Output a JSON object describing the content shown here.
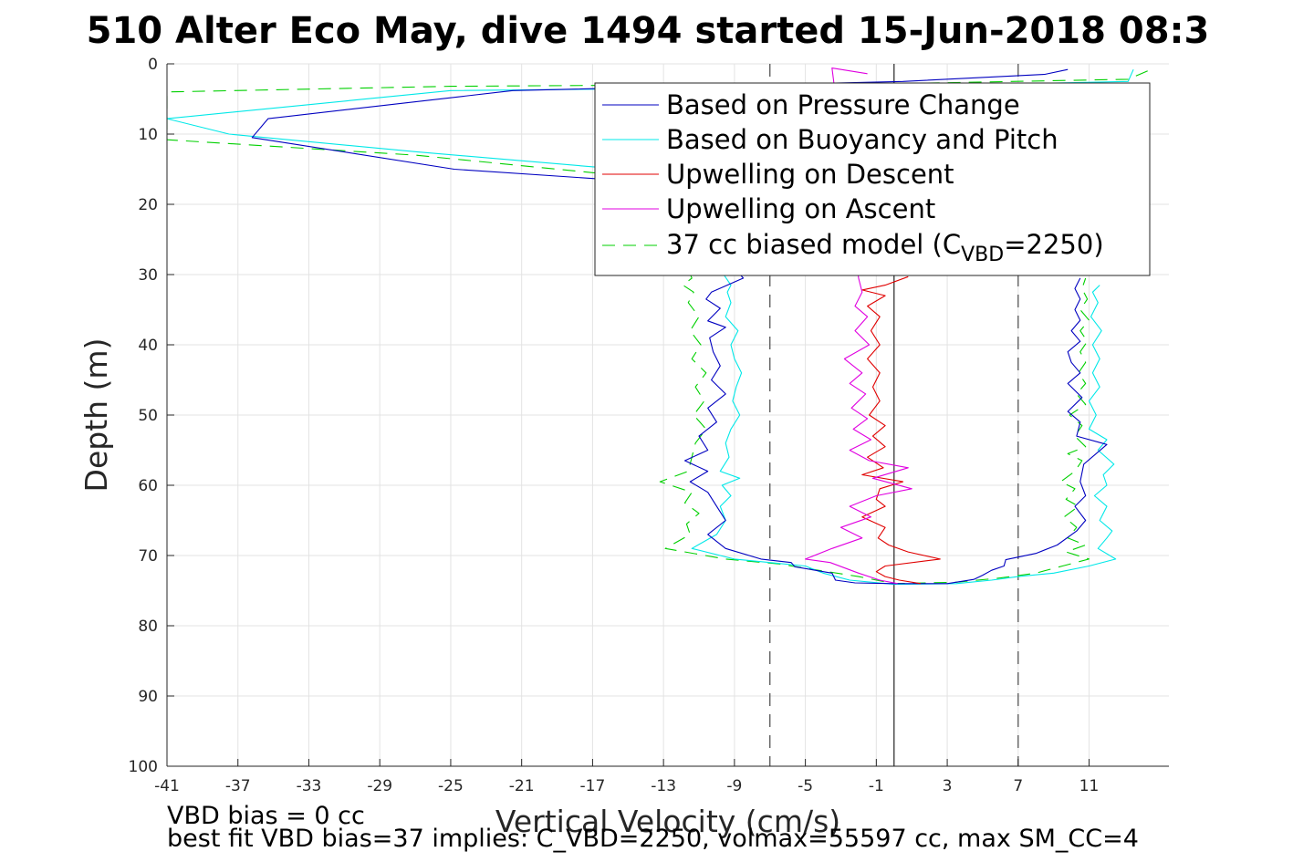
{
  "chart_data": {
    "type": "line",
    "title": "510 Alter Eco May, dive 1494 started 15-Jun-2018 08:3",
    "xlabel": "Vertical Velocity (cm/s)",
    "ylabel": "Depth (m)",
    "xlim": [
      -41,
      15.5
    ],
    "ylim": [
      0,
      100
    ],
    "y_reversed": true,
    "xticks": [
      "-41",
      "-37",
      "-33",
      "-29",
      "-25",
      "-21",
      "-17",
      "-13",
      "-9",
      "-5",
      "-1",
      "3",
      "7",
      "11"
    ],
    "yticks": [
      "0",
      "10",
      "20",
      "30",
      "40",
      "50",
      "60",
      "70",
      "80",
      "90",
      "100"
    ],
    "grid": true,
    "legend_position": "top-right",
    "reference_lines": [
      {
        "x": -7,
        "style": "dashed",
        "color": "#555555"
      },
      {
        "x": 0,
        "style": "solid",
        "color": "#333333"
      },
      {
        "x": 7,
        "style": "dashed",
        "color": "#555555"
      }
    ],
    "series": [
      {
        "name": "Based on Pressure Change",
        "color": "#0000c0",
        "dash": false,
        "points": [
          [
            9.8,
            0.8
          ],
          [
            8.5,
            1.5
          ],
          [
            0.5,
            2.5
          ],
          [
            -21.5,
            3.8
          ],
          [
            -35.3,
            7.8
          ],
          [
            -36.2,
            10.5
          ],
          [
            -24.8,
            15
          ],
          [
            -16.5,
            16.4
          ],
          [
            -13.5,
            17
          ],
          [
            -8.5,
            30.5
          ],
          [
            -10.3,
            32.5
          ],
          [
            -10.6,
            33.5
          ],
          [
            -9.8,
            34.8
          ],
          [
            -10.5,
            36.6
          ],
          [
            -9.5,
            37.5
          ],
          [
            -10.4,
            39
          ],
          [
            -10.2,
            41
          ],
          [
            -9.8,
            43
          ],
          [
            -10.3,
            45
          ],
          [
            -9.5,
            47
          ],
          [
            -10.5,
            49
          ],
          [
            -10,
            51
          ],
          [
            -11,
            53
          ],
          [
            -10.5,
            55
          ],
          [
            -11.8,
            56.5
          ],
          [
            -10.5,
            58
          ],
          [
            -11.5,
            59.5
          ],
          [
            -10.5,
            61
          ],
          [
            -10,
            63
          ],
          [
            -9.5,
            65
          ],
          [
            -10.5,
            67
          ],
          [
            -9.5,
            69
          ],
          [
            -7.5,
            70.5
          ],
          [
            -5.8,
            71
          ],
          [
            -5.6,
            71.6
          ],
          [
            -3.5,
            72.5
          ],
          [
            -3.3,
            73.5
          ],
          [
            -2.2,
            73.9
          ],
          [
            0,
            74
          ],
          [
            3,
            74
          ],
          [
            4.5,
            73.4
          ],
          [
            5,
            72.8
          ],
          [
            5.5,
            72.1
          ],
          [
            6.2,
            71.5
          ],
          [
            6.3,
            70.6
          ],
          [
            8,
            69.7
          ],
          [
            9.2,
            68.5
          ],
          [
            10.3,
            66.5
          ],
          [
            10.8,
            65
          ],
          [
            10.2,
            63
          ],
          [
            10.8,
            61.5
          ],
          [
            10.5,
            59.5
          ],
          [
            10.7,
            57
          ],
          [
            12,
            54.2
          ],
          [
            10.3,
            53
          ],
          [
            10.5,
            51
          ],
          [
            9.8,
            49.5
          ],
          [
            10.6,
            47.5
          ],
          [
            9.8,
            45.5
          ],
          [
            10.5,
            44
          ],
          [
            10,
            42.5
          ],
          [
            9.8,
            41
          ],
          [
            10.5,
            39.5
          ],
          [
            10,
            38
          ],
          [
            10.5,
            36.5
          ],
          [
            10.2,
            35
          ],
          [
            10.5,
            33.5
          ],
          [
            10.2,
            32
          ],
          [
            10.5,
            30.5
          ]
        ]
      },
      {
        "name": "Based on Buoyancy and Pitch",
        "color": "#00e8e8",
        "dash": false,
        "points": [
          [
            13.5,
            0.8
          ],
          [
            13.2,
            2.5
          ],
          [
            0.2,
            3.2
          ],
          [
            -25,
            3.8
          ],
          [
            -41,
            7.8
          ],
          [
            -37.5,
            10
          ],
          [
            -27,
            12.5
          ],
          [
            -16.8,
            14.7
          ],
          [
            -13.6,
            15.2
          ],
          [
            -9.2,
            31.5
          ],
          [
            -9.4,
            32.5
          ],
          [
            -9.2,
            34
          ],
          [
            -9.5,
            36
          ],
          [
            -8.8,
            38
          ],
          [
            -9.2,
            40
          ],
          [
            -9,
            42
          ],
          [
            -8.6,
            44
          ],
          [
            -8.9,
            46
          ],
          [
            -9.1,
            48
          ],
          [
            -8.7,
            50
          ],
          [
            -9.2,
            52
          ],
          [
            -9.5,
            54
          ],
          [
            -9.3,
            56
          ],
          [
            -9.8,
            58
          ],
          [
            -8.7,
            59
          ],
          [
            -9.7,
            60
          ],
          [
            -9.2,
            61.5
          ],
          [
            -9.8,
            63
          ],
          [
            -9.5,
            65
          ],
          [
            -10,
            67
          ],
          [
            -11.4,
            69
          ],
          [
            -9,
            70.5
          ],
          [
            -7,
            71
          ],
          [
            -5,
            71.5
          ],
          [
            -4,
            72.5
          ],
          [
            -2.5,
            73.5
          ],
          [
            0,
            74.1
          ],
          [
            3.5,
            74
          ],
          [
            5.5,
            73.5
          ],
          [
            7,
            73
          ],
          [
            9,
            72.5
          ],
          [
            11,
            71.5
          ],
          [
            12.5,
            70.5
          ],
          [
            11.5,
            69
          ],
          [
            12,
            67.5
          ],
          [
            12.3,
            66.5
          ],
          [
            11.6,
            65
          ],
          [
            12,
            63
          ],
          [
            11.3,
            61.5
          ],
          [
            12,
            60
          ],
          [
            11.8,
            58.5
          ],
          [
            12.4,
            57
          ],
          [
            11.5,
            55
          ],
          [
            12,
            53.5
          ],
          [
            11,
            52
          ],
          [
            11.4,
            50
          ],
          [
            11,
            48
          ],
          [
            11.6,
            46
          ],
          [
            11.2,
            44
          ],
          [
            11.6,
            42
          ],
          [
            11.2,
            40
          ],
          [
            11.7,
            38
          ],
          [
            11.1,
            36
          ],
          [
            11.5,
            34
          ],
          [
            11.2,
            32.5
          ],
          [
            11.6,
            31.5
          ]
        ]
      },
      {
        "name": "Upwelling on Descent",
        "color": "#e00000",
        "dash": false,
        "points": [
          [
            0.8,
            30.3
          ],
          [
            -0.5,
            31.5
          ],
          [
            -1.8,
            32.2
          ],
          [
            -0.5,
            33
          ],
          [
            -1.5,
            34.5
          ],
          [
            -0.8,
            36
          ],
          [
            -1.3,
            38
          ],
          [
            -0.8,
            40
          ],
          [
            -1.5,
            42
          ],
          [
            -0.8,
            44
          ],
          [
            -1.2,
            46
          ],
          [
            -0.8,
            48
          ],
          [
            -1.4,
            50
          ],
          [
            -0.5,
            51.5
          ],
          [
            -1.2,
            53
          ],
          [
            -0.5,
            54.5
          ],
          [
            -1.5,
            56
          ],
          [
            -0.6,
            57.5
          ],
          [
            -1.8,
            58.5
          ],
          [
            0.5,
            59.5
          ],
          [
            -0.8,
            60.5
          ],
          [
            -1,
            62
          ],
          [
            -0.5,
            63
          ],
          [
            -1.8,
            64.5
          ],
          [
            -0.5,
            66
          ],
          [
            -0.9,
            67.5
          ],
          [
            -0.3,
            68.5
          ],
          [
            0.8,
            69.5
          ],
          [
            2.6,
            70.5
          ],
          [
            -0.5,
            71.5
          ],
          [
            -1,
            72.3
          ],
          [
            -0.5,
            73
          ],
          [
            0.3,
            73.5
          ],
          [
            1.5,
            74
          ]
        ]
      },
      {
        "name": "Upwelling on Ascent",
        "color": "#e000e0",
        "dash": false,
        "points": [
          [
            -1.5,
            1.4
          ],
          [
            -3.5,
            0.6
          ],
          [
            -2,
            30.5
          ],
          [
            -1.8,
            32.5
          ],
          [
            -2.2,
            34.5
          ],
          [
            -1.5,
            36
          ],
          [
            -2.2,
            38
          ],
          [
            -1.4,
            40
          ],
          [
            -2.8,
            42
          ],
          [
            -1.8,
            44
          ],
          [
            -2.5,
            45.5
          ],
          [
            -1.6,
            47
          ],
          [
            -2.4,
            49
          ],
          [
            -1.5,
            50.5
          ],
          [
            -2.3,
            52
          ],
          [
            -1.3,
            53.5
          ],
          [
            -2.5,
            55
          ],
          [
            -1.4,
            56.5
          ],
          [
            0.8,
            57.5
          ],
          [
            -1.2,
            59
          ],
          [
            1,
            60.5
          ],
          [
            -1,
            61.5
          ],
          [
            -2.5,
            63
          ],
          [
            -1.3,
            64.5
          ],
          [
            -3,
            66
          ],
          [
            -1.8,
            67.5
          ],
          [
            -3.5,
            69
          ],
          [
            -5,
            70.5
          ],
          [
            -3.6,
            71
          ],
          [
            -2,
            72.5
          ],
          [
            -0.8,
            73.5
          ],
          [
            0.2,
            74
          ]
        ]
      },
      {
        "name": "37 cc biased model (C",
        "name_sub": "VBD",
        "name_suffix": "=2250)",
        "color": "#00d000",
        "dash": true,
        "points": [
          [
            14.3,
            1
          ],
          [
            13.2,
            2.2
          ],
          [
            0.5,
            2.8
          ],
          [
            -25,
            3.2
          ],
          [
            -41,
            4
          ],
          [
            -41,
            10.8
          ],
          [
            -27,
            13
          ],
          [
            -17,
            15.5
          ],
          [
            -13.8,
            16
          ],
          [
            -11.4,
            30.5
          ],
          [
            -11.9,
            31.5
          ],
          [
            -11.3,
            32.5
          ],
          [
            -11.6,
            34
          ],
          [
            -11,
            36
          ],
          [
            -11.5,
            38
          ],
          [
            -10.9,
            40
          ],
          [
            -11.4,
            42
          ],
          [
            -10.6,
            44
          ],
          [
            -11.2,
            46
          ],
          [
            -10.7,
            48
          ],
          [
            -11.3,
            50
          ],
          [
            -10.6,
            52
          ],
          [
            -11.2,
            54
          ],
          [
            -11.4,
            56
          ],
          [
            -11.6,
            58
          ],
          [
            -13.2,
            59.5
          ],
          [
            -11.4,
            61
          ],
          [
            -11.8,
            62.5
          ],
          [
            -11,
            64
          ],
          [
            -11.7,
            65.5
          ],
          [
            -11.5,
            67
          ],
          [
            -12.9,
            69
          ],
          [
            -9.5,
            70.5
          ],
          [
            -6.5,
            71.2
          ],
          [
            -4.5,
            72
          ],
          [
            -2,
            73
          ],
          [
            0,
            74
          ],
          [
            3.5,
            73.8
          ],
          [
            6,
            73.2
          ],
          [
            8,
            72.5
          ],
          [
            9.5,
            71.5
          ],
          [
            11,
            70.5
          ],
          [
            9.7,
            69.5
          ],
          [
            10.8,
            68.5
          ],
          [
            9.8,
            67.5
          ],
          [
            10.3,
            66
          ],
          [
            9.6,
            64.5
          ],
          [
            10.4,
            63
          ],
          [
            9.7,
            62
          ],
          [
            10.2,
            60.5
          ],
          [
            9.4,
            59.5
          ],
          [
            10.2,
            58
          ],
          [
            10.6,
            56.5
          ],
          [
            9.8,
            55.5
          ],
          [
            10.8,
            54.5
          ],
          [
            10.2,
            53
          ],
          [
            10.6,
            51.5
          ],
          [
            9.9,
            50
          ],
          [
            10.8,
            48.5
          ],
          [
            10.3,
            47
          ],
          [
            10.8,
            45.5
          ],
          [
            10.4,
            44
          ],
          [
            10.8,
            42.5
          ],
          [
            10.5,
            41
          ],
          [
            10.9,
            39.5
          ],
          [
            10.5,
            38
          ],
          [
            11,
            36.5
          ],
          [
            10.5,
            35
          ],
          [
            10.9,
            33.5
          ],
          [
            10.6,
            32
          ],
          [
            10.8,
            30.5
          ]
        ]
      }
    ]
  },
  "notes": {
    "line1": "VBD bias = 0 cc",
    "line2": "best fit VBD bias=37 implies: C_VBD=2250, volmax=55597 cc, max SM_CC=4"
  },
  "legend": {
    "items": [
      {
        "label": "Based on Pressure Change"
      },
      {
        "label": "Based on Buoyancy and Pitch"
      },
      {
        "label": "Upwelling on Descent"
      },
      {
        "label": "Upwelling on Ascent"
      },
      {
        "label_main": "37 cc biased model (C",
        "label_sub": "VBD",
        "label_suffix": "=2250)"
      }
    ]
  }
}
